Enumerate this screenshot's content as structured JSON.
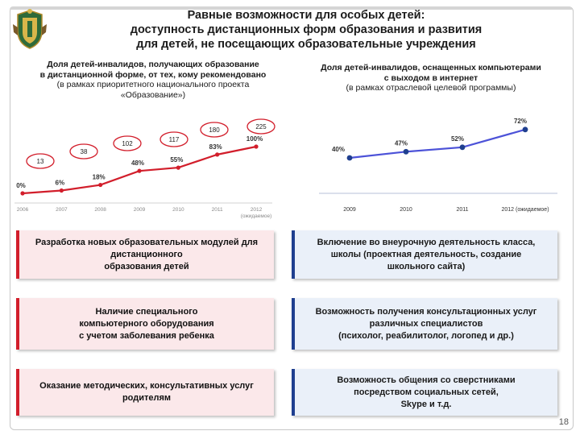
{
  "slide": {
    "title_lines": [
      "Равные возможности для  особых детей:",
      "доступность дистанционных форм образования и развития",
      "для детей, не посещающих образовательные учреждения"
    ],
    "page_number": "18"
  },
  "colors": {
    "red": "#d21e2b",
    "navy": "#1f3f8f",
    "left_box_bg": "#fbe8ea",
    "right_box_bg": "#eaf0f9"
  },
  "left_caption": {
    "bold_lines": [
      "Доля детей-инвалидов, получающих образование",
      "в дистанционной форме, от тех, кому рекомендовано"
    ],
    "normal_lines": [
      "(в рамках приоритетного национального проекта",
      "«Образование»)"
    ]
  },
  "right_caption": {
    "bold_lines": [
      "Доля детей-инвалидов, оснащенных компьютерами",
      "с выходом в интернет"
    ],
    "normal_lines": [
      "(в рамках отраслевой целевой программы)"
    ]
  },
  "chart_data": [
    {
      "type": "line",
      "title": "Доля детей-инвалидов, получающих образование в дистанционной форме, от тех, кому рекомендовано",
      "categories": [
        "2006",
        "2007",
        "2008",
        "2009",
        "2010",
        "2011",
        "2012"
      ],
      "category_note": "(ожидаемое)",
      "series": [
        {
          "values": [
            0,
            6,
            18,
            48,
            55,
            83,
            100
          ]
        }
      ],
      "point_labels": [
        "0%",
        "6%",
        "18%",
        "48%",
        "55%",
        "83%",
        "100%"
      ],
      "callouts": [
        "13",
        "38",
        "102",
        "117",
        "180",
        "225"
      ],
      "ylim": [
        0,
        100
      ],
      "grid": false
    },
    {
      "type": "line",
      "title": "Доля детей-инвалидов, оснащенных компьютерами с выходом в интернет",
      "categories": [
        "2009",
        "2010",
        "2011",
        "2012 (ожидаемое)"
      ],
      "series": [
        {
          "values": [
            40,
            47,
            52,
            72
          ]
        }
      ],
      "point_labels": [
        "40%",
        "47%",
        "52%",
        "72%"
      ],
      "ylim": [
        0,
        100
      ],
      "grid": false
    }
  ],
  "boxes_left": [
    [
      "Разработка новых образовательных модулей для",
      "дистанционного",
      "образования детей"
    ],
    [
      "Наличие специального",
      "компьютерного оборудования",
      "с учетом заболевания ребенка"
    ],
    [
      "Оказание методических, консультативных услуг",
      "родителям"
    ]
  ],
  "boxes_right": [
    [
      "Включение во внеурочную деятельность класса,",
      "школы (проектная деятельность, создание",
      "школьного сайта)"
    ],
    [
      "Возможность получения консультационных услуг",
      "различных специалистов",
      "(психолог, реабилитолог, логопед и др.)"
    ],
    [
      "Возможность общения со сверстниками",
      "посредством социальных сетей,",
      "Skype и т.д."
    ]
  ]
}
